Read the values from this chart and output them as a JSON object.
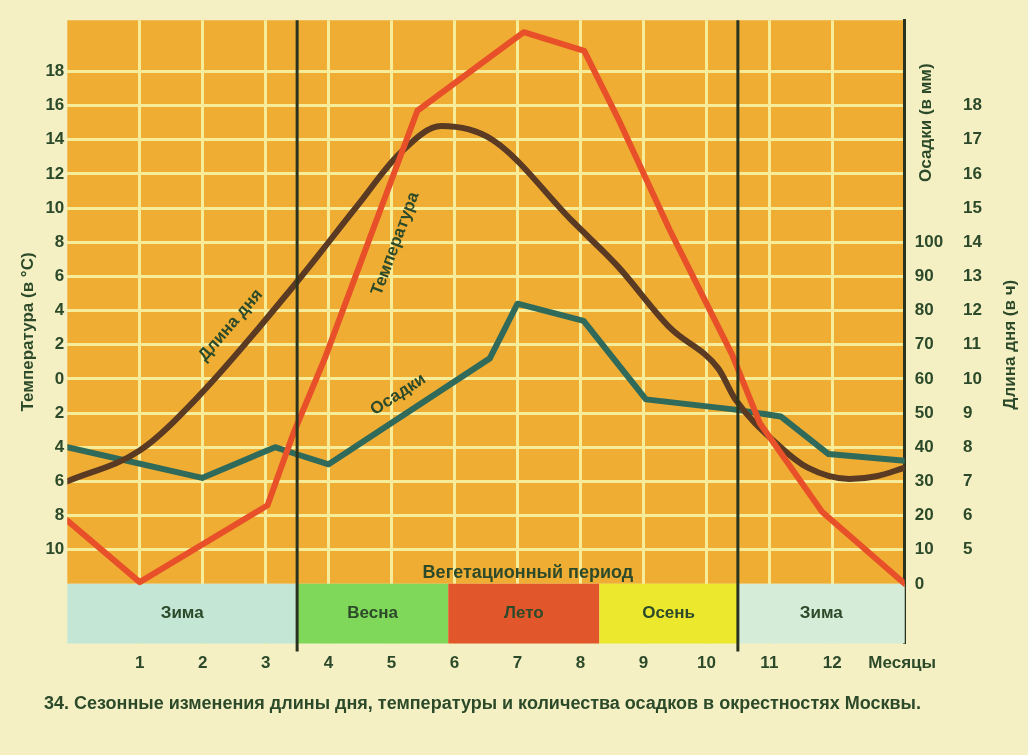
{
  "chart_data": {
    "type": "line",
    "title": "34. Сезонные изменения длины дня, температуры и количества осадков в окрестностях Москвы.",
    "xlabel": "Месяцы",
    "ylabel": "Температура (в °C)",
    "y2label": "Осадки (в мм)",
    "y3label": "Длина дня (в ч)",
    "xlim": [
      -0.15,
      13.15
    ],
    "xticks": [
      1,
      2,
      3,
      4,
      5,
      6,
      7,
      8,
      9,
      10,
      11,
      12
    ],
    "ylim": [
      -15.5,
      21
    ],
    "yticks": [
      {
        "value": -10,
        "label": "10"
      },
      {
        "value": -8,
        "label": "8"
      },
      {
        "value": -6,
        "label": "6"
      },
      {
        "value": -4,
        "label": "4"
      },
      {
        "value": -2,
        "label": "2"
      },
      0,
      2,
      4,
      6,
      8,
      10,
      12,
      14,
      16,
      18
    ],
    "y2lim": [
      -17.5,
      165
    ],
    "y2ticks": [
      0,
      10,
      20,
      30,
      40,
      50,
      60,
      70,
      80,
      90,
      100
    ],
    "y3lim": [
      2.25,
      20.5
    ],
    "y3ticks": [
      5,
      6,
      7,
      8,
      9,
      10,
      11,
      12,
      13,
      14,
      15,
      16,
      17,
      18
    ],
    "grid": true,
    "legend": false,
    "marker": "none",
    "line_style": "solid",
    "series": [
      {
        "name": "Температура",
        "color": "#e8502a",
        "x": [
          -0.15,
          1.0,
          3.03,
          3.44,
          3.94,
          5.41,
          7.1,
          8.06,
          8.59,
          9.42,
          10.41,
          10.85,
          11.84,
          13.15
        ],
        "values": [
          -8.3,
          -11.9,
          -7.4,
          -3.2,
          1.2,
          15.7,
          20.3,
          19.2,
          15.3,
          8.7,
          1.4,
          -2.6,
          -7.8,
          -12
        ]
      },
      {
        "name": "Длина дня",
        "color": "#5a3a22",
        "axis": "y3",
        "x": [
          -0.15,
          1.0,
          1.94,
          3.48,
          4.47,
          5.13,
          5.79,
          6.6,
          7.88,
          8.59,
          9.42,
          10.19,
          10.46,
          11.18,
          11.61,
          12.27,
          12.7,
          13.15
        ],
        "values": [
          7.0,
          7.9,
          9.5,
          12.8,
          15.1,
          16.6,
          17.4,
          17.0,
          14.6,
          13.3,
          11.5,
          10.3,
          9.4,
          8.0,
          7.4,
          7.07,
          7.15,
          7.4
        ]
      },
      {
        "name": "Осадки",
        "color": "#2f6a5a",
        "axis": "y2",
        "x": [
          -0.15,
          1.99,
          3.15,
          3.48,
          4.0,
          6.56,
          7.0,
          8.05,
          9.04,
          10.46,
          11.18,
          11.94,
          13.15
        ],
        "values": [
          40,
          31,
          40,
          38,
          35,
          66,
          82,
          77,
          54,
          51,
          49,
          38,
          36
        ]
      }
    ],
    "ref_lines": [
      {
        "axis": "x",
        "value": 3.5,
        "color": "#2a3320"
      },
      {
        "axis": "x",
        "value": 10.5,
        "color": "#2a3320"
      }
    ],
    "bands": [
      {
        "axis": "x",
        "from": -0.15,
        "to": 3.5,
        "label": "Зима",
        "color": "#c4e6d4"
      },
      {
        "axis": "x",
        "from": 3.5,
        "to": 5.9,
        "label": "Весна",
        "color": "#7fd85a"
      },
      {
        "axis": "x",
        "from": 5.9,
        "to": 8.3,
        "label": "Лето",
        "color": "#e2562c"
      },
      {
        "axis": "x",
        "from": 8.3,
        "to": 10.5,
        "label": "Осень",
        "color": "#ece82e"
      },
      {
        "axis": "x",
        "from": 10.5,
        "to": 13.15,
        "label": "Зима",
        "color": "#d4ecd8"
      }
    ],
    "annotations": [
      "Вегетационный период"
    ]
  }
}
